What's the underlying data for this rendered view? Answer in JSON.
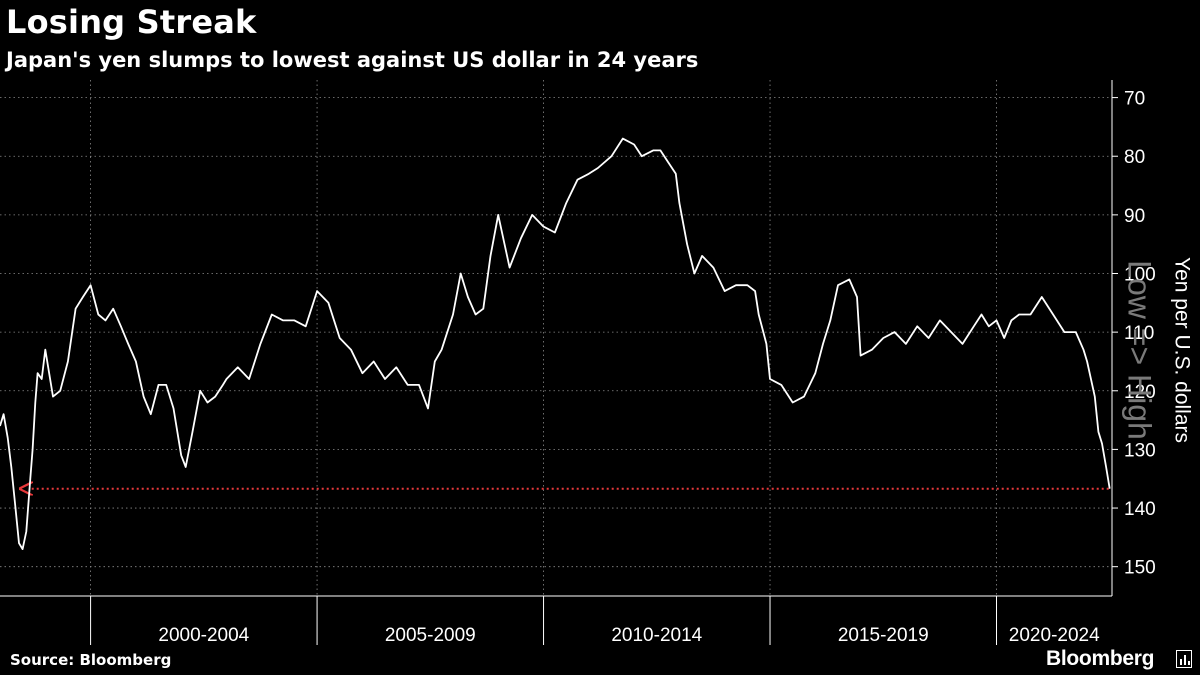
{
  "header": {
    "title": "Losing Streak",
    "subtitle": "Japan's yen slumps to lowest against US dollar in 24 years"
  },
  "footer": {
    "source": "Source: Bloomberg",
    "brand": "Bloomberg"
  },
  "colors": {
    "background": "#000000",
    "line": "#ffffff",
    "grid": "#8a8a8a",
    "reference_line": "#e8393b"
  },
  "chart_data": {
    "type": "line",
    "title": "Losing Streak",
    "subtitle": "Japan's yen slumps to lowest against US dollar in 24 years",
    "ylabel": "Yen per U.S. dollars",
    "axis_annotation": "Low => High",
    "y_inverted": true,
    "ylim": [
      155,
      67
    ],
    "yticks": [
      70,
      80,
      90,
      100,
      110,
      120,
      130,
      140,
      150
    ],
    "xlim": [
      1998.0,
      2022.55
    ],
    "x_period_starts": [
      2000,
      2005,
      2010,
      2015,
      2020
    ],
    "x_period_labels": [
      "2000-2004",
      "2005-2009",
      "2010-2014",
      "2015-2019",
      "2020-2024"
    ],
    "grid": true,
    "reference_line": {
      "y": 136.7,
      "x_from": 1998.7,
      "x_to": 2022.5,
      "style": "dotted",
      "arrow_at": "start"
    },
    "series": [
      {
        "x": [
          1998.0,
          1998.08,
          1998.17,
          1998.25,
          1998.33,
          1998.42,
          1998.5,
          1998.58,
          1998.67,
          1998.72,
          1998.78,
          1998.83,
          1998.92,
          1999.0,
          1999.17,
          1999.33,
          1999.5,
          1999.67,
          1999.83,
          2000.0,
          2000.17,
          2000.33,
          2000.5,
          2000.67,
          2000.83,
          2001.0,
          2001.17,
          2001.33,
          2001.5,
          2001.67,
          2001.83,
          2002.0,
          2002.1,
          2002.25,
          2002.42,
          2002.58,
          2002.75,
          2002.92,
          2003.0,
          2003.25,
          2003.5,
          2003.75,
          2004.0,
          2004.25,
          2004.5,
          2004.75,
          2005.0,
          2005.25,
          2005.5,
          2005.75,
          2006.0,
          2006.25,
          2006.5,
          2006.75,
          2007.0,
          2007.25,
          2007.45,
          2007.6,
          2007.75,
          2008.0,
          2008.17,
          2008.33,
          2008.5,
          2008.67,
          2008.83,
          2009.0,
          2009.25,
          2009.5,
          2009.75,
          2010.0,
          2010.25,
          2010.5,
          2010.75,
          2011.0,
          2011.2,
          2011.5,
          2011.75,
          2012.0,
          2012.17,
          2012.42,
          2012.58,
          2012.75,
          2012.92,
          2013.0,
          2013.17,
          2013.33,
          2013.5,
          2013.75,
          2014.0,
          2014.25,
          2014.5,
          2014.67,
          2014.75,
          2014.92,
          2015.0,
          2015.25,
          2015.5,
          2015.75,
          2016.0,
          2016.17,
          2016.33,
          2016.5,
          2016.75,
          2016.92,
          2017.0,
          2017.25,
          2017.5,
          2017.75,
          2018.0,
          2018.25,
          2018.5,
          2018.75,
          2019.0,
          2019.25,
          2019.5,
          2019.67,
          2019.83,
          2020.0,
          2020.17,
          2020.33,
          2020.5,
          2020.75,
          2021.0,
          2021.25,
          2021.5,
          2021.75,
          2021.92,
          2022.0,
          2022.17,
          2022.25,
          2022.33,
          2022.42,
          2022.5
        ],
        "values": [
          126,
          124,
          128,
          133,
          139,
          146,
          147,
          144,
          135,
          130,
          122,
          117,
          118,
          113,
          121,
          120,
          115,
          106,
          104,
          102,
          107,
          108,
          106,
          109,
          112,
          115,
          121,
          124,
          119,
          119,
          123,
          131,
          133,
          127,
          120,
          122,
          121,
          119,
          118,
          116,
          118,
          112,
          107,
          108,
          108,
          109,
          103,
          105,
          111,
          113,
          117,
          115,
          118,
          116,
          119,
          119,
          123,
          115,
          113,
          107,
          100,
          104,
          107,
          106,
          97,
          90,
          99,
          94,
          90,
          92,
          93,
          88,
          84,
          83,
          82,
          80,
          77,
          78,
          80,
          79,
          79,
          81,
          83,
          88,
          95,
          100,
          97,
          99,
          103,
          102,
          102,
          103,
          107,
          112,
          118,
          119,
          122,
          121,
          117,
          112,
          108,
          102,
          101,
          104,
          114,
          113,
          111,
          110,
          112,
          109,
          111,
          108,
          110,
          112,
          109,
          107,
          109,
          108,
          111,
          108,
          107,
          107,
          104,
          107,
          110,
          110,
          113,
          115,
          121,
          127,
          129,
          133,
          136.7
        ]
      }
    ]
  }
}
